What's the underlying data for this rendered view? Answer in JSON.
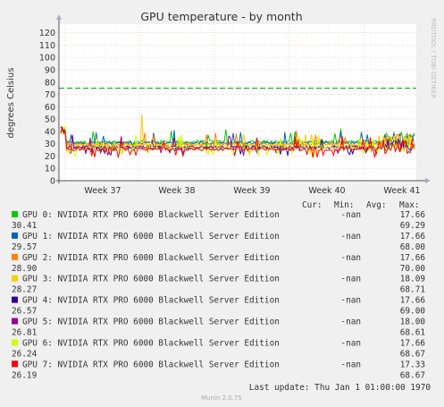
{
  "chart_data": {
    "type": "line",
    "title": "GPU temperature - by month",
    "ylabel": "degrees Celsius",
    "ylim": [
      0,
      127
    ],
    "yticks": [
      0,
      10,
      20,
      30,
      40,
      50,
      60,
      70,
      80,
      90,
      100,
      110,
      120
    ],
    "xticks": [
      "Week 37",
      "Week 38",
      "Week 39",
      "Week 40",
      "Week 41"
    ],
    "warning_line": 75,
    "grid": true,
    "legend_header": {
      "cur": "Cur:",
      "min": "Min:",
      "avg": "Avg:",
      "max": "Max:"
    },
    "series": [
      {
        "name": "GPU 0: NVIDIA RTX PRO 6000 Blackwell Server Edition",
        "color": "#00cc00",
        "cur": "-nan",
        "min": "17.66",
        "avg": "30.41",
        "max": "69.29"
      },
      {
        "name": "GPU 1: NVIDIA RTX PRO 6000 Blackwell Server Edition",
        "color": "#0066b3",
        "cur": "-nan",
        "min": "17.66",
        "avg": "29.57",
        "max": "68.00"
      },
      {
        "name": "GPU 2: NVIDIA RTX PRO 6000 Blackwell Server Edition",
        "color": "#ff8000",
        "cur": "-nan",
        "min": "17.66",
        "avg": "28.90",
        "max": "70.00"
      },
      {
        "name": "GPU 3: NVIDIA RTX PRO 6000 Blackwell Server Edition",
        "color": "#ffcc00",
        "cur": "-nan",
        "min": "18.09",
        "avg": "28.27",
        "max": "68.71"
      },
      {
        "name": "GPU 4: NVIDIA RTX PRO 6000 Blackwell Server Edition",
        "color": "#330099",
        "cur": "-nan",
        "min": "17.66",
        "avg": "26.57",
        "max": "69.00"
      },
      {
        "name": "GPU 5: NVIDIA RTX PRO 6000 Blackwell Server Edition",
        "color": "#990099",
        "cur": "-nan",
        "min": "18.00",
        "avg": "26.81",
        "max": "68.61"
      },
      {
        "name": "GPU 6: NVIDIA RTX PRO 6000 Blackwell Server Edition",
        "color": "#ccff00",
        "cur": "-nan",
        "min": "17.66",
        "avg": "26.24",
        "max": "68.67"
      },
      {
        "name": "GPU 7: NVIDIA RTX PRO 6000 Blackwell Server Edition",
        "color": "#ff0000",
        "cur": "-nan",
        "min": "17.33",
        "avg": "26.19",
        "max": "68.67"
      }
    ]
  },
  "side_label": "RRDTOOL / TOBI OETIKER",
  "last_update": "Last update: Thu Jan  1 01:00:00 1970",
  "footer": "Munin 2.0.75"
}
